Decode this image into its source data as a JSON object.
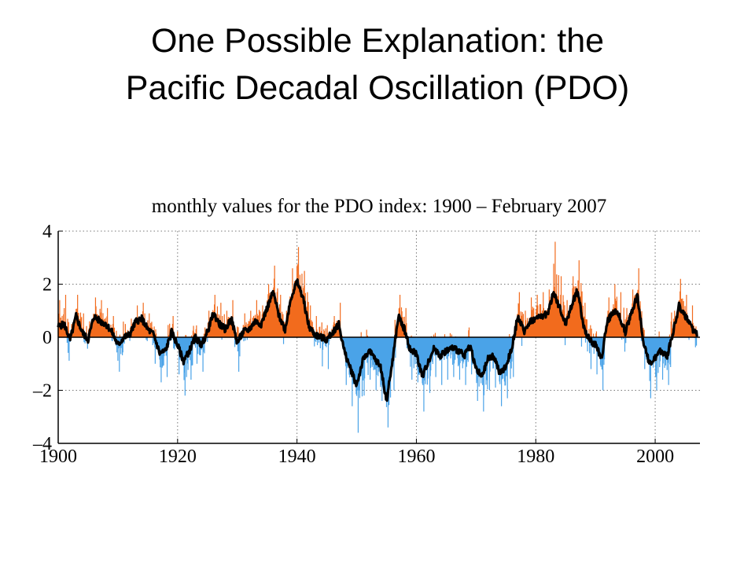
{
  "slide": {
    "title_line1": "One Possible Explanation:  the",
    "title_line2": "Pacific Decadal Oscillation (PDO)"
  },
  "chart_data": {
    "type": "bar",
    "title": "monthly values for the PDO index: 1900 – February 2007",
    "xlabel": "",
    "ylabel": "",
    "xlim": [
      1900,
      2007.5
    ],
    "ylim": [
      -4,
      4
    ],
    "xticks": [
      1900,
      1920,
      1940,
      1960,
      1980,
      2000
    ],
    "xtick_labels": [
      "1900",
      "1920",
      "1940",
      "1960",
      "1980",
      "2000"
    ],
    "yticks": [
      4,
      2,
      0,
      -2,
      -4
    ],
    "ytick_labels": [
      "4",
      "2",
      "0",
      "–2",
      "–4"
    ],
    "grid": true,
    "colors": {
      "positive": "#f26b1d",
      "negative": "#4aa3e8",
      "smoothed": "#000000"
    },
    "series": [
      {
        "kind": "smoothed",
        "x": [
          1900,
          1901,
          1902,
          1903,
          1904,
          1905,
          1906,
          1907,
          1908,
          1909,
          1910,
          1911,
          1912,
          1913,
          1914,
          1915,
          1916,
          1917,
          1918,
          1919,
          1920,
          1921,
          1922,
          1923,
          1924,
          1925,
          1926,
          1927,
          1928,
          1929,
          1930,
          1931,
          1932,
          1933,
          1934,
          1935,
          1936,
          1937,
          1938,
          1939,
          1940,
          1941,
          1942,
          1943,
          1944,
          1945,
          1946,
          1947,
          1948,
          1949,
          1950,
          1951,
          1952,
          1953,
          1954,
          1955,
          1956,
          1957,
          1958,
          1959,
          1960,
          1961,
          1962,
          1963,
          1964,
          1965,
          1966,
          1967,
          1968,
          1969,
          1970,
          1971,
          1972,
          1973,
          1974,
          1975,
          1976,
          1977,
          1978,
          1979,
          1980,
          1981,
          1982,
          1983,
          1984,
          1985,
          1986,
          1987,
          1988,
          1989,
          1990,
          1991,
          1992,
          1993,
          1994,
          1995,
          1996,
          1997,
          1998,
          1999,
          2000,
          2001,
          2002,
          2003,
          2004,
          2005,
          2006,
          2007
        ],
        "values": [
          0.4,
          0.5,
          -0.1,
          0.8,
          0.2,
          -0.1,
          0.8,
          0.6,
          0.5,
          0.2,
          -0.3,
          0.0,
          0.1,
          0.6,
          0.7,
          0.3,
          0.1,
          -0.6,
          -0.5,
          0.2,
          -0.3,
          -0.9,
          -0.5,
          0.0,
          -0.3,
          0.2,
          0.9,
          0.5,
          0.3,
          0.7,
          -0.2,
          0.2,
          0.3,
          0.6,
          0.5,
          1.1,
          1.7,
          0.8,
          0.3,
          1.5,
          2.1,
          1.5,
          0.4,
          0.1,
          0.0,
          -0.1,
          0.2,
          0.5,
          -0.6,
          -1.2,
          -1.8,
          -0.9,
          -0.5,
          -0.8,
          -1.1,
          -2.4,
          -0.9,
          0.8,
          0.3,
          -0.5,
          -0.6,
          -1.5,
          -0.9,
          -0.4,
          -0.7,
          -0.5,
          -0.4,
          -0.5,
          -0.7,
          -0.3,
          -1.2,
          -1.5,
          -0.8,
          -0.7,
          -1.4,
          -1.1,
          -0.4,
          0.8,
          0.2,
          0.6,
          0.7,
          0.8,
          0.9,
          1.7,
          1.1,
          0.5,
          1.2,
          1.8,
          0.4,
          -0.1,
          -0.3,
          -0.8,
          0.6,
          1.0,
          0.8,
          0.2,
          0.9,
          1.6,
          -0.1,
          -1.0,
          -0.8,
          -0.5,
          -0.7,
          0.2,
          1.2,
          0.8,
          0.4,
          0.1
        ]
      },
      {
        "kind": "monthly",
        "note_values_per_year": "annual extremes of monthly spikes",
        "x": [
          1900,
          1901,
          1902,
          1903,
          1904,
          1905,
          1906,
          1907,
          1908,
          1909,
          1910,
          1911,
          1912,
          1913,
          1914,
          1915,
          1916,
          1917,
          1918,
          1919,
          1920,
          1921,
          1922,
          1923,
          1924,
          1925,
          1926,
          1927,
          1928,
          1929,
          1930,
          1931,
          1932,
          1933,
          1934,
          1935,
          1936,
          1937,
          1938,
          1939,
          1940,
          1941,
          1942,
          1943,
          1944,
          1945,
          1946,
          1947,
          1948,
          1949,
          1950,
          1951,
          1952,
          1953,
          1954,
          1955,
          1956,
          1957,
          1958,
          1959,
          1960,
          1961,
          1962,
          1963,
          1964,
          1965,
          1966,
          1967,
          1968,
          1969,
          1970,
          1971,
          1972,
          1973,
          1974,
          1975,
          1976,
          1977,
          1978,
          1979,
          1980,
          1981,
          1982,
          1983,
          1984,
          1985,
          1986,
          1987,
          1988,
          1989,
          1990,
          1991,
          1992,
          1993,
          1994,
          1995,
          1996,
          1997,
          1998,
          1999,
          2000,
          2001,
          2002,
          2003,
          2004,
          2005,
          2006,
          2007
        ],
        "max": [
          1.4,
          1.6,
          0.5,
          1.6,
          0.9,
          0.6,
          1.5,
          1.4,
          1.1,
          0.8,
          0.3,
          0.5,
          0.7,
          1.2,
          1.3,
          0.9,
          0.7,
          0.1,
          0.2,
          0.8,
          0.4,
          0.2,
          0.3,
          0.9,
          0.5,
          1.0,
          1.6,
          1.3,
          1.0,
          1.4,
          0.5,
          0.9,
          1.0,
          1.4,
          1.2,
          2.0,
          2.7,
          1.6,
          1.0,
          2.6,
          3.4,
          2.5,
          1.2,
          0.8,
          0.6,
          0.5,
          0.8,
          1.3,
          0.3,
          0.2,
          0.0,
          0.2,
          0.5,
          0.3,
          0.2,
          0.0,
          0.4,
          1.6,
          1.1,
          0.4,
          0.4,
          0.0,
          0.4,
          0.6,
          0.3,
          0.5,
          0.6,
          0.4,
          0.3,
          0.8,
          0.1,
          0.0,
          0.4,
          0.5,
          0.0,
          0.2,
          0.6,
          1.7,
          1.0,
          1.5,
          1.6,
          1.7,
          1.8,
          3.6,
          2.3,
          1.4,
          2.3,
          2.9,
          1.3,
          0.9,
          0.7,
          0.4,
          1.5,
          2.0,
          1.7,
          1.1,
          1.8,
          2.6,
          0.8,
          0.2,
          0.3,
          0.5,
          0.4,
          1.0,
          2.2,
          1.6,
          1.2,
          0.6
        ],
        "min": [
          -0.6,
          -0.5,
          -1.2,
          -0.4,
          -1.0,
          -1.2,
          -0.4,
          -0.6,
          -0.5,
          -0.9,
          -1.3,
          -1.0,
          -0.9,
          -0.5,
          -0.4,
          -0.8,
          -1.0,
          -1.7,
          -1.5,
          -0.8,
          -1.4,
          -2.2,
          -1.6,
          -1.0,
          -1.3,
          -0.9,
          -0.2,
          -0.6,
          -0.7,
          -0.4,
          -1.3,
          -0.8,
          -0.7,
          -0.5,
          -0.6,
          -0.1,
          0.0,
          -0.3,
          -0.7,
          0.0,
          0.0,
          0.0,
          -0.7,
          -1.0,
          -1.1,
          -1.2,
          -0.9,
          -0.6,
          -1.8,
          -2.6,
          -3.6,
          -2.2,
          -1.6,
          -2.0,
          -2.4,
          -3.4,
          -2.0,
          -0.3,
          -0.7,
          -1.6,
          -1.7,
          -2.8,
          -2.1,
          -1.5,
          -1.8,
          -1.6,
          -1.5,
          -1.6,
          -1.8,
          -1.4,
          -2.4,
          -2.8,
          -2.0,
          -1.9,
          -2.6,
          -2.3,
          -1.5,
          -0.3,
          -0.8,
          -0.5,
          -0.4,
          -0.3,
          -0.2,
          0.0,
          -0.1,
          -0.6,
          0.0,
          0.0,
          -0.7,
          -1.2,
          -1.4,
          -2.0,
          -0.5,
          -0.1,
          -0.3,
          -0.9,
          -0.2,
          0.0,
          -1.2,
          -2.3,
          -2.0,
          -1.6,
          -1.8,
          -0.9,
          0.0,
          -0.3,
          -0.7,
          -0.9
        ]
      }
    ]
  }
}
